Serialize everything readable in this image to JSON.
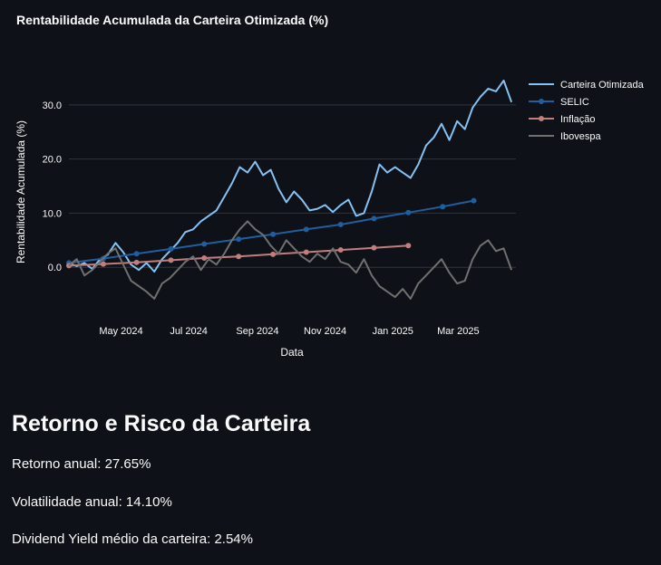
{
  "chart_data": {
    "type": "line",
    "title": "Rentabilidade Acumulada da Carteira Otimizada (%)",
    "xlabel": "Data",
    "ylabel": "Rentabilidade Acumulada (%)",
    "x_range": [
      "2024-03-15",
      "2025-04-22"
    ],
    "ylim": [
      -9.5,
      39
    ],
    "y_ticks": [
      0,
      10,
      20,
      30
    ],
    "y_tick_labels": [
      "0.0",
      "10.0",
      "20.0",
      "30.0"
    ],
    "x_ticks": [
      "2024-05-01",
      "2024-07-01",
      "2024-09-01",
      "2024-11-01",
      "2025-01-01",
      "2025-03-01"
    ],
    "x_tick_labels": [
      "May 2024",
      "Jul 2024",
      "Sep 2024",
      "Nov 2024",
      "Jan 2025",
      "Mar 2025"
    ],
    "grid": true,
    "legend_position": "top-right",
    "series": [
      {
        "name": "Carteira Otimizada",
        "color": "#84c2f4",
        "markers": false,
        "points": [
          [
            "2024-03-15",
            0.8
          ],
          [
            "2024-03-22",
            0.2
          ],
          [
            "2024-03-29",
            0.8
          ],
          [
            "2024-04-05",
            -0.3
          ],
          [
            "2024-04-12",
            1.5
          ],
          [
            "2024-04-19",
            2.3
          ],
          [
            "2024-04-26",
            4.5
          ],
          [
            "2024-05-03",
            2.8
          ],
          [
            "2024-05-10",
            0.5
          ],
          [
            "2024-05-17",
            -0.5
          ],
          [
            "2024-05-24",
            0.8
          ],
          [
            "2024-05-31",
            -0.8
          ],
          [
            "2024-06-07",
            1.5
          ],
          [
            "2024-06-14",
            3.0
          ],
          [
            "2024-06-21",
            4.5
          ],
          [
            "2024-06-28",
            6.5
          ],
          [
            "2024-07-05",
            7.0
          ],
          [
            "2024-07-12",
            8.5
          ],
          [
            "2024-07-19",
            9.5
          ],
          [
            "2024-07-26",
            10.5
          ],
          [
            "2024-08-02",
            13.0
          ],
          [
            "2024-08-09",
            15.5
          ],
          [
            "2024-08-16",
            18.5
          ],
          [
            "2024-08-23",
            17.5
          ],
          [
            "2024-08-30",
            19.5
          ],
          [
            "2024-09-06",
            17.0
          ],
          [
            "2024-09-13",
            18.0
          ],
          [
            "2024-09-20",
            14.5
          ],
          [
            "2024-09-27",
            12.0
          ],
          [
            "2024-10-04",
            14.0
          ],
          [
            "2024-10-11",
            12.5
          ],
          [
            "2024-10-18",
            10.5
          ],
          [
            "2024-10-25",
            10.8
          ],
          [
            "2024-11-01",
            11.5
          ],
          [
            "2024-11-08",
            10.2
          ],
          [
            "2024-11-15",
            11.5
          ],
          [
            "2024-11-22",
            12.5
          ],
          [
            "2024-11-29",
            9.5
          ],
          [
            "2024-12-06",
            10.0
          ],
          [
            "2024-12-13",
            14.0
          ],
          [
            "2024-12-20",
            19.0
          ],
          [
            "2024-12-27",
            17.5
          ],
          [
            "2025-01-03",
            18.5
          ],
          [
            "2025-01-10",
            17.5
          ],
          [
            "2025-01-17",
            16.5
          ],
          [
            "2025-01-24",
            19.0
          ],
          [
            "2025-01-31",
            22.5
          ],
          [
            "2025-02-07",
            24.0
          ],
          [
            "2025-02-14",
            26.5
          ],
          [
            "2025-02-21",
            23.5
          ],
          [
            "2025-02-28",
            27.0
          ],
          [
            "2025-03-07",
            25.5
          ],
          [
            "2025-03-14",
            29.5
          ],
          [
            "2025-03-21",
            31.5
          ],
          [
            "2025-03-28",
            33.0
          ],
          [
            "2025-04-04",
            32.5
          ],
          [
            "2025-04-11",
            34.5
          ],
          [
            "2025-04-18",
            30.5
          ]
        ]
      },
      {
        "name": "SELIC",
        "color": "#1f5fa0",
        "markers": true,
        "points": [
          [
            "2024-03-15",
            0.8
          ],
          [
            "2024-04-15",
            1.6
          ],
          [
            "2024-05-15",
            2.5
          ],
          [
            "2024-06-15",
            3.4
          ],
          [
            "2024-07-15",
            4.3
          ],
          [
            "2024-08-15",
            5.2
          ],
          [
            "2024-09-15",
            6.1
          ],
          [
            "2024-10-15",
            7.0
          ],
          [
            "2024-11-15",
            7.9
          ],
          [
            "2024-12-15",
            9.0
          ],
          [
            "2025-01-15",
            10.1
          ],
          [
            "2025-02-15",
            11.2
          ],
          [
            "2025-03-15",
            12.3
          ]
        ]
      },
      {
        "name": "Inflação",
        "color": "#c27d7d",
        "markers": true,
        "points": [
          [
            "2024-03-15",
            0.3
          ],
          [
            "2024-04-15",
            0.6
          ],
          [
            "2024-05-15",
            0.9
          ],
          [
            "2024-06-15",
            1.3
          ],
          [
            "2024-07-15",
            1.7
          ],
          [
            "2024-08-15",
            2.0
          ],
          [
            "2024-09-15",
            2.4
          ],
          [
            "2024-10-15",
            2.8
          ],
          [
            "2024-11-15",
            3.2
          ],
          [
            "2024-12-15",
            3.6
          ],
          [
            "2025-01-15",
            4.0
          ]
        ]
      },
      {
        "name": "Ibovespa",
        "color": "#707070",
        "markers": false,
        "points": [
          [
            "2024-03-15",
            0.3
          ],
          [
            "2024-03-22",
            1.5
          ],
          [
            "2024-03-29",
            -1.5
          ],
          [
            "2024-04-05",
            -0.5
          ],
          [
            "2024-04-12",
            1.0
          ],
          [
            "2024-04-19",
            2.5
          ],
          [
            "2024-04-26",
            3.5
          ],
          [
            "2024-05-03",
            0.5
          ],
          [
            "2024-05-10",
            -2.5
          ],
          [
            "2024-05-17",
            -3.5
          ],
          [
            "2024-05-24",
            -4.5
          ],
          [
            "2024-05-31",
            -5.8
          ],
          [
            "2024-06-07",
            -3.0
          ],
          [
            "2024-06-14",
            -2.0
          ],
          [
            "2024-06-21",
            -0.5
          ],
          [
            "2024-06-28",
            1.0
          ],
          [
            "2024-07-05",
            2.0
          ],
          [
            "2024-07-12",
            -0.5
          ],
          [
            "2024-07-19",
            1.5
          ],
          [
            "2024-07-26",
            0.5
          ],
          [
            "2024-08-02",
            2.5
          ],
          [
            "2024-08-09",
            5.0
          ],
          [
            "2024-08-16",
            7.0
          ],
          [
            "2024-08-23",
            8.5
          ],
          [
            "2024-08-30",
            7.0
          ],
          [
            "2024-09-06",
            6.0
          ],
          [
            "2024-09-13",
            4.0
          ],
          [
            "2024-09-20",
            2.5
          ],
          [
            "2024-09-27",
            5.0
          ],
          [
            "2024-10-04",
            3.5
          ],
          [
            "2024-10-11",
            2.0
          ],
          [
            "2024-10-18",
            1.0
          ],
          [
            "2024-10-25",
            2.5
          ],
          [
            "2024-11-01",
            1.5
          ],
          [
            "2024-11-08",
            3.5
          ],
          [
            "2024-11-15",
            1.0
          ],
          [
            "2024-11-22",
            0.5
          ],
          [
            "2024-11-29",
            -1.0
          ],
          [
            "2024-12-06",
            1.5
          ],
          [
            "2024-12-13",
            -1.5
          ],
          [
            "2024-12-20",
            -3.5
          ],
          [
            "2024-12-27",
            -4.5
          ],
          [
            "2025-01-03",
            -5.5
          ],
          [
            "2025-01-10",
            -4.0
          ],
          [
            "2025-01-17",
            -5.8
          ],
          [
            "2025-01-24",
            -3.0
          ],
          [
            "2025-01-31",
            -1.5
          ],
          [
            "2025-02-07",
            0.0
          ],
          [
            "2025-02-14",
            1.5
          ],
          [
            "2025-02-21",
            -1.0
          ],
          [
            "2025-02-28",
            -3.0
          ],
          [
            "2025-03-07",
            -2.5
          ],
          [
            "2025-03-14",
            1.5
          ],
          [
            "2025-03-21",
            4.0
          ],
          [
            "2025-03-28",
            5.0
          ],
          [
            "2025-04-04",
            3.0
          ],
          [
            "2025-04-11",
            3.5
          ],
          [
            "2025-04-18",
            -0.5
          ]
        ]
      }
    ]
  },
  "section": {
    "heading": "Retorno e Risco da Carteira",
    "metrics": [
      "Retorno anual: 27.65%",
      "Volatilidade anual: 14.10%",
      "Dividend Yield médio da carteira: 2.54%"
    ]
  }
}
